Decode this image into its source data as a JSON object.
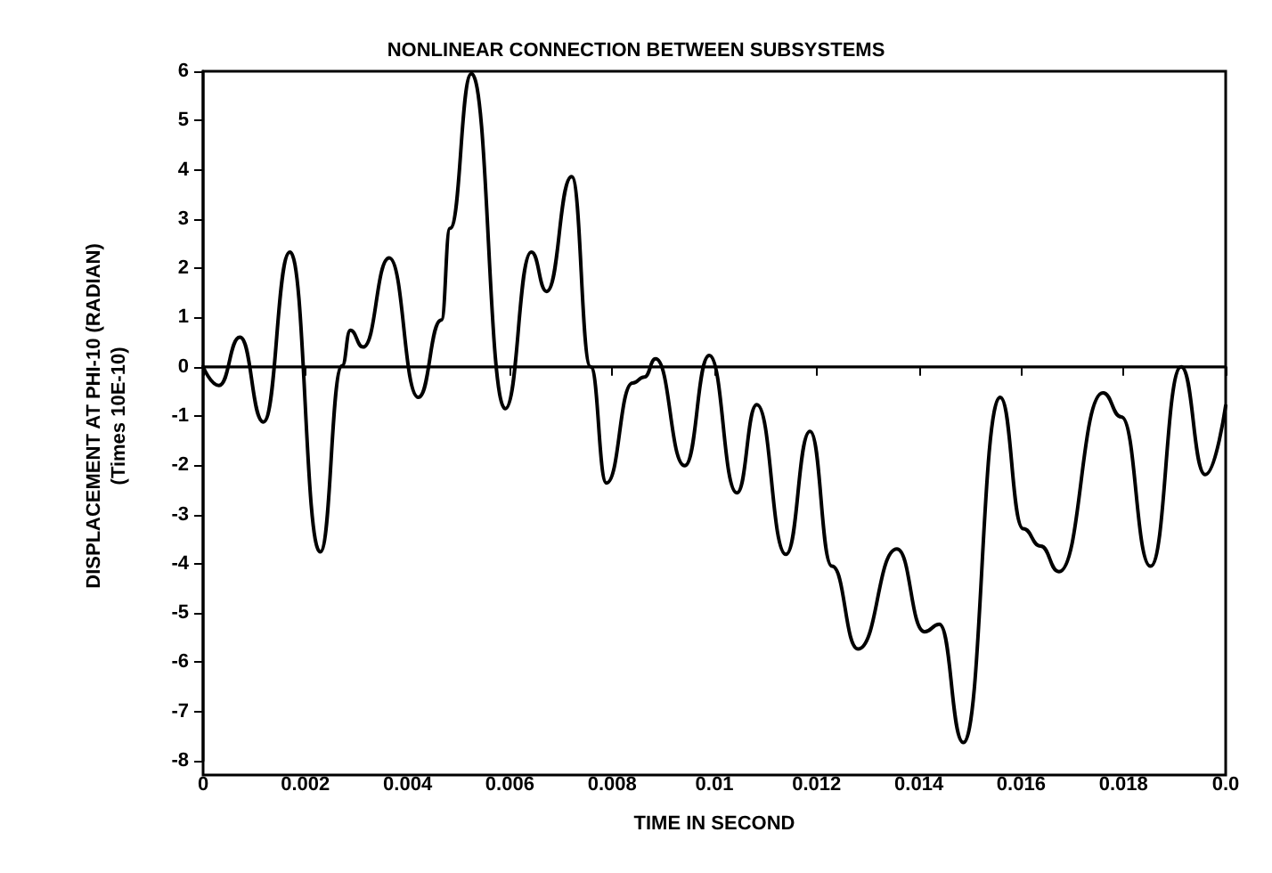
{
  "chart_data": {
    "type": "line",
    "title": "NONLINEAR CONNECTION BETWEEN SUBSYSTEMS",
    "xlabel": "TIME IN SECOND",
    "ylabel": "DISPLACEMENT AT PHI-10 (RADIAN)\n(Times 10E-10)",
    "x": [
      0,
      0.00031,
      0.00072,
      0.00118,
      0.0017,
      0.00229,
      0.00272,
      0.00288,
      0.00313,
      0.00364,
      0.00421,
      0.00466,
      0.00483,
      0.00525,
      0.00591,
      0.00642,
      0.00672,
      0.00721,
      0.00758,
      0.00789,
      0.0084,
      0.00863,
      0.00885,
      0.00942,
      0.0099,
      0.01044,
      0.01083,
      0.0114,
      0.01187,
      0.0123,
      0.01281,
      0.01357,
      0.01411,
      0.0144,
      0.01487,
      0.01559,
      0.01604,
      0.01638,
      0.01674,
      0.0176,
      0.01796,
      0.01853,
      0.01913,
      0.0196,
      0.02
    ],
    "series": [
      {
        "color": "#000000",
        "values": [
          0,
          -0.38,
          0.6,
          -1.12,
          2.33,
          -3.76,
          0.02,
          0.74,
          0.4,
          2.21,
          -0.62,
          0.95,
          2.81,
          5.95,
          -0.85,
          2.33,
          1.53,
          3.86,
          0,
          -2.36,
          -0.33,
          -0.21,
          0.16,
          -2.01,
          0.23,
          -2.56,
          -0.77,
          -3.81,
          -1.31,
          -4.05,
          -5.73,
          -3.7,
          -5.38,
          -5.23,
          -7.63,
          -0.62,
          -3.29,
          -3.64,
          -4.16,
          -0.53,
          -1.02,
          -4.05,
          0,
          -2.19,
          -0.79
        ]
      }
    ],
    "xlim": [
      0,
      0.02
    ],
    "xticks": [
      0,
      0.002,
      0.004,
      0.006,
      0.008,
      0.01,
      0.012,
      0.014,
      0.016,
      0.018,
      {
        "value": 0.02,
        "label": "0.0"
      }
    ],
    "ylim": [
      -8,
      6
    ],
    "yticks": [
      -8,
      -7,
      -6,
      -5,
      -4,
      -3,
      -2,
      -1,
      0,
      1,
      2,
      3,
      4,
      5,
      6
    ],
    "ref_lines": [
      {
        "axis": "y",
        "value": 0,
        "color": "#000000"
      }
    ],
    "grid": false,
    "marker": "none",
    "line_style": "solid"
  }
}
